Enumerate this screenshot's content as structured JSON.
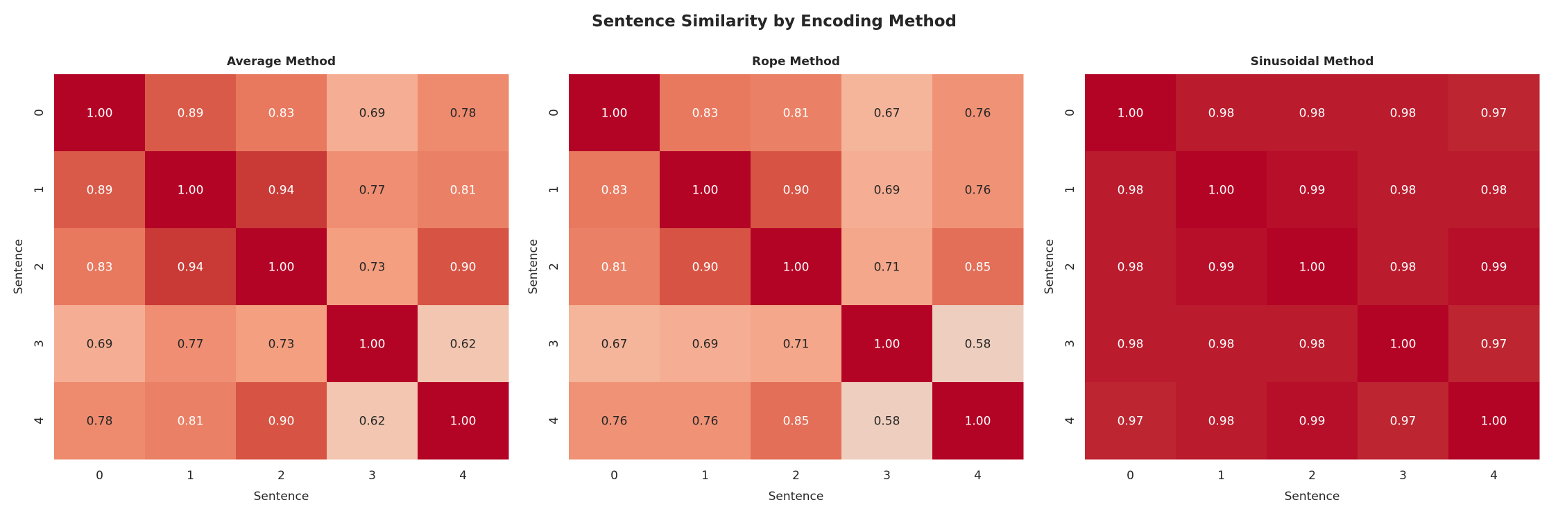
{
  "chart_data": {
    "title": "Sentence Similarity by Encoding Method",
    "type": "heatmap",
    "colormap": "coolwarm",
    "color_range": [
      0,
      1
    ],
    "colorbar": false,
    "annotation_format": "0.00",
    "panels": [
      {
        "title": "Average Method",
        "xlabel": "Sentence",
        "ylabel": "Sentence",
        "x_ticks": [
          "0",
          "1",
          "2",
          "3",
          "4"
        ],
        "y_ticks": [
          "0",
          "1",
          "2",
          "3",
          "4"
        ],
        "values": [
          [
            1.0,
            0.89,
            0.83,
            0.69,
            0.78
          ],
          [
            0.89,
            1.0,
            0.94,
            0.77,
            0.81
          ],
          [
            0.83,
            0.94,
            1.0,
            0.73,
            0.9
          ],
          [
            0.69,
            0.77,
            0.73,
            1.0,
            0.62
          ],
          [
            0.78,
            0.81,
            0.9,
            0.62,
            1.0
          ]
        ]
      },
      {
        "title": "Rope Method",
        "xlabel": "Sentence",
        "ylabel": "Sentence",
        "x_ticks": [
          "0",
          "1",
          "2",
          "3",
          "4"
        ],
        "y_ticks": [
          "0",
          "1",
          "2",
          "3",
          "4"
        ],
        "values": [
          [
            1.0,
            0.83,
            0.81,
            0.67,
            0.76
          ],
          [
            0.83,
            1.0,
            0.9,
            0.69,
            0.76
          ],
          [
            0.81,
            0.9,
            1.0,
            0.71,
            0.85
          ],
          [
            0.67,
            0.69,
            0.71,
            1.0,
            0.58
          ],
          [
            0.76,
            0.76,
            0.85,
            0.58,
            1.0
          ]
        ]
      },
      {
        "title": "Sinusoidal Method",
        "xlabel": "Sentence",
        "ylabel": "Sentence",
        "x_ticks": [
          "0",
          "1",
          "2",
          "3",
          "4"
        ],
        "y_ticks": [
          "0",
          "1",
          "2",
          "3",
          "4"
        ],
        "values": [
          [
            1.0,
            0.98,
            0.98,
            0.98,
            0.97
          ],
          [
            0.98,
            1.0,
            0.99,
            0.98,
            0.98
          ],
          [
            0.98,
            0.99,
            1.0,
            0.98,
            0.99
          ],
          [
            0.98,
            0.98,
            0.98,
            1.0,
            0.97
          ],
          [
            0.97,
            0.98,
            0.99,
            0.97,
            1.0
          ]
        ]
      }
    ]
  }
}
